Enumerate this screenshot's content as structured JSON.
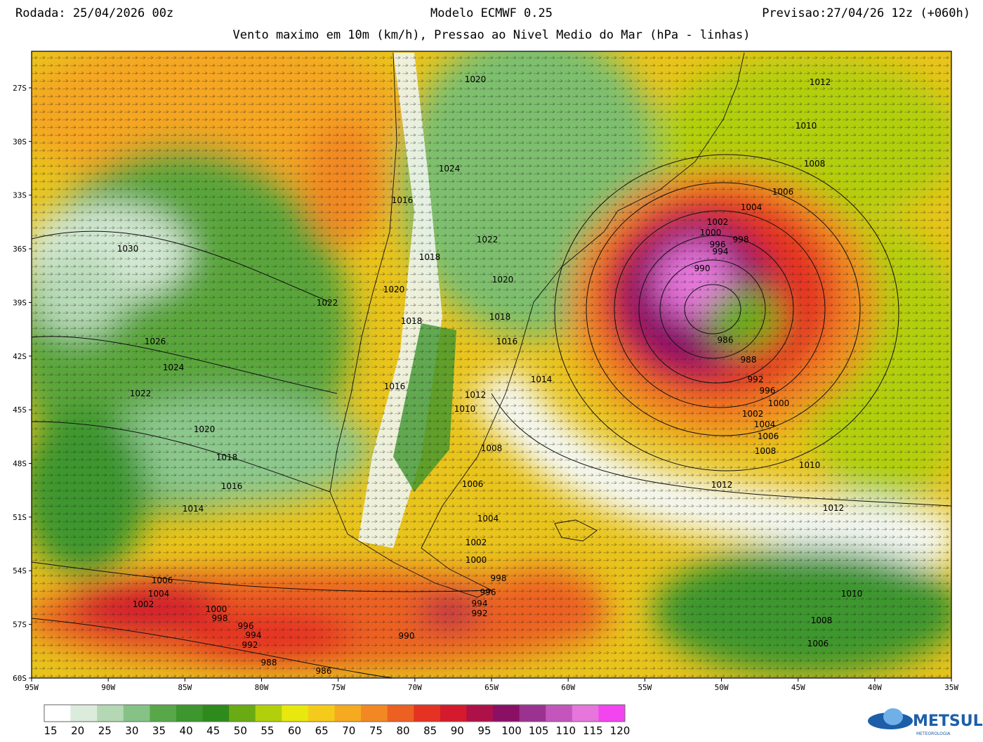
{
  "header": {
    "run": "Rodada: 25/04/2026 00z",
    "model": "Modelo ECMWF 0.25",
    "forecast": "Previsao:27/04/26 12z (+060h)",
    "subtitle": "Vento maximo em 10m (km/h), Pressao ao Nivel Medio do Mar (hPa - linhas)"
  },
  "map": {
    "lat_labels": [
      "27S",
      "30S",
      "33S",
      "36S",
      "39S",
      "42S",
      "45S",
      "48S",
      "51S",
      "54S",
      "57S",
      "60S"
    ],
    "lon_labels": [
      "95W",
      "90W",
      "85W",
      "80W",
      "75W",
      "70W",
      "65W",
      "60W",
      "55W",
      "50W",
      "45W",
      "40W",
      "35W"
    ],
    "isobar_labels": [
      "1012",
      "1010",
      "1008",
      "1006",
      "1004",
      "1002",
      "1000",
      "998",
      "996",
      "994",
      "990",
      "986",
      "988",
      "992",
      "996",
      "1000",
      "1002",
      "1004",
      "1006",
      "1008",
      "1010",
      "1012",
      "1012",
      "1010",
      "1008",
      "1006",
      "1030",
      "1022",
      "1026",
      "1024",
      "1022",
      "1020",
      "1018",
      "1016",
      "1014",
      "1006",
      "1004",
      "1002",
      "1000",
      "998",
      "996",
      "994",
      "992",
      "988",
      "986",
      "990",
      "1024",
      "1016",
      "1022",
      "1018",
      "1020",
      "1020",
      "1018",
      "1018",
      "1016",
      "1014",
      "1016",
      "1012",
      "1010",
      "1008",
      "1006",
      "1004",
      "1002",
      "1000",
      "998",
      "996",
      "994",
      "992",
      "1020"
    ]
  },
  "colorbar": {
    "ticks": [
      "15",
      "20",
      "25",
      "30",
      "35",
      "40",
      "45",
      "50",
      "55",
      "60",
      "65",
      "70",
      "75",
      "80",
      "85",
      "90",
      "95",
      "100",
      "105",
      "110",
      "115",
      "120"
    ],
    "colors": [
      "#ffffff",
      "#dcecdc",
      "#b3d8b3",
      "#86c286",
      "#58a84a",
      "#3d962e",
      "#2e8a1c",
      "#6aab14",
      "#b2cf0c",
      "#e8e80e",
      "#f5cb1b",
      "#f6aa20",
      "#f28824",
      "#ec6022",
      "#e53222",
      "#d41a2c",
      "#ae1048",
      "#8a1066",
      "#9c3290",
      "#c455bc",
      "#e676dc",
      "#f245f0"
    ]
  },
  "logo": {
    "name": "METSUL",
    "tagline": "METEOROLOGIA"
  }
}
